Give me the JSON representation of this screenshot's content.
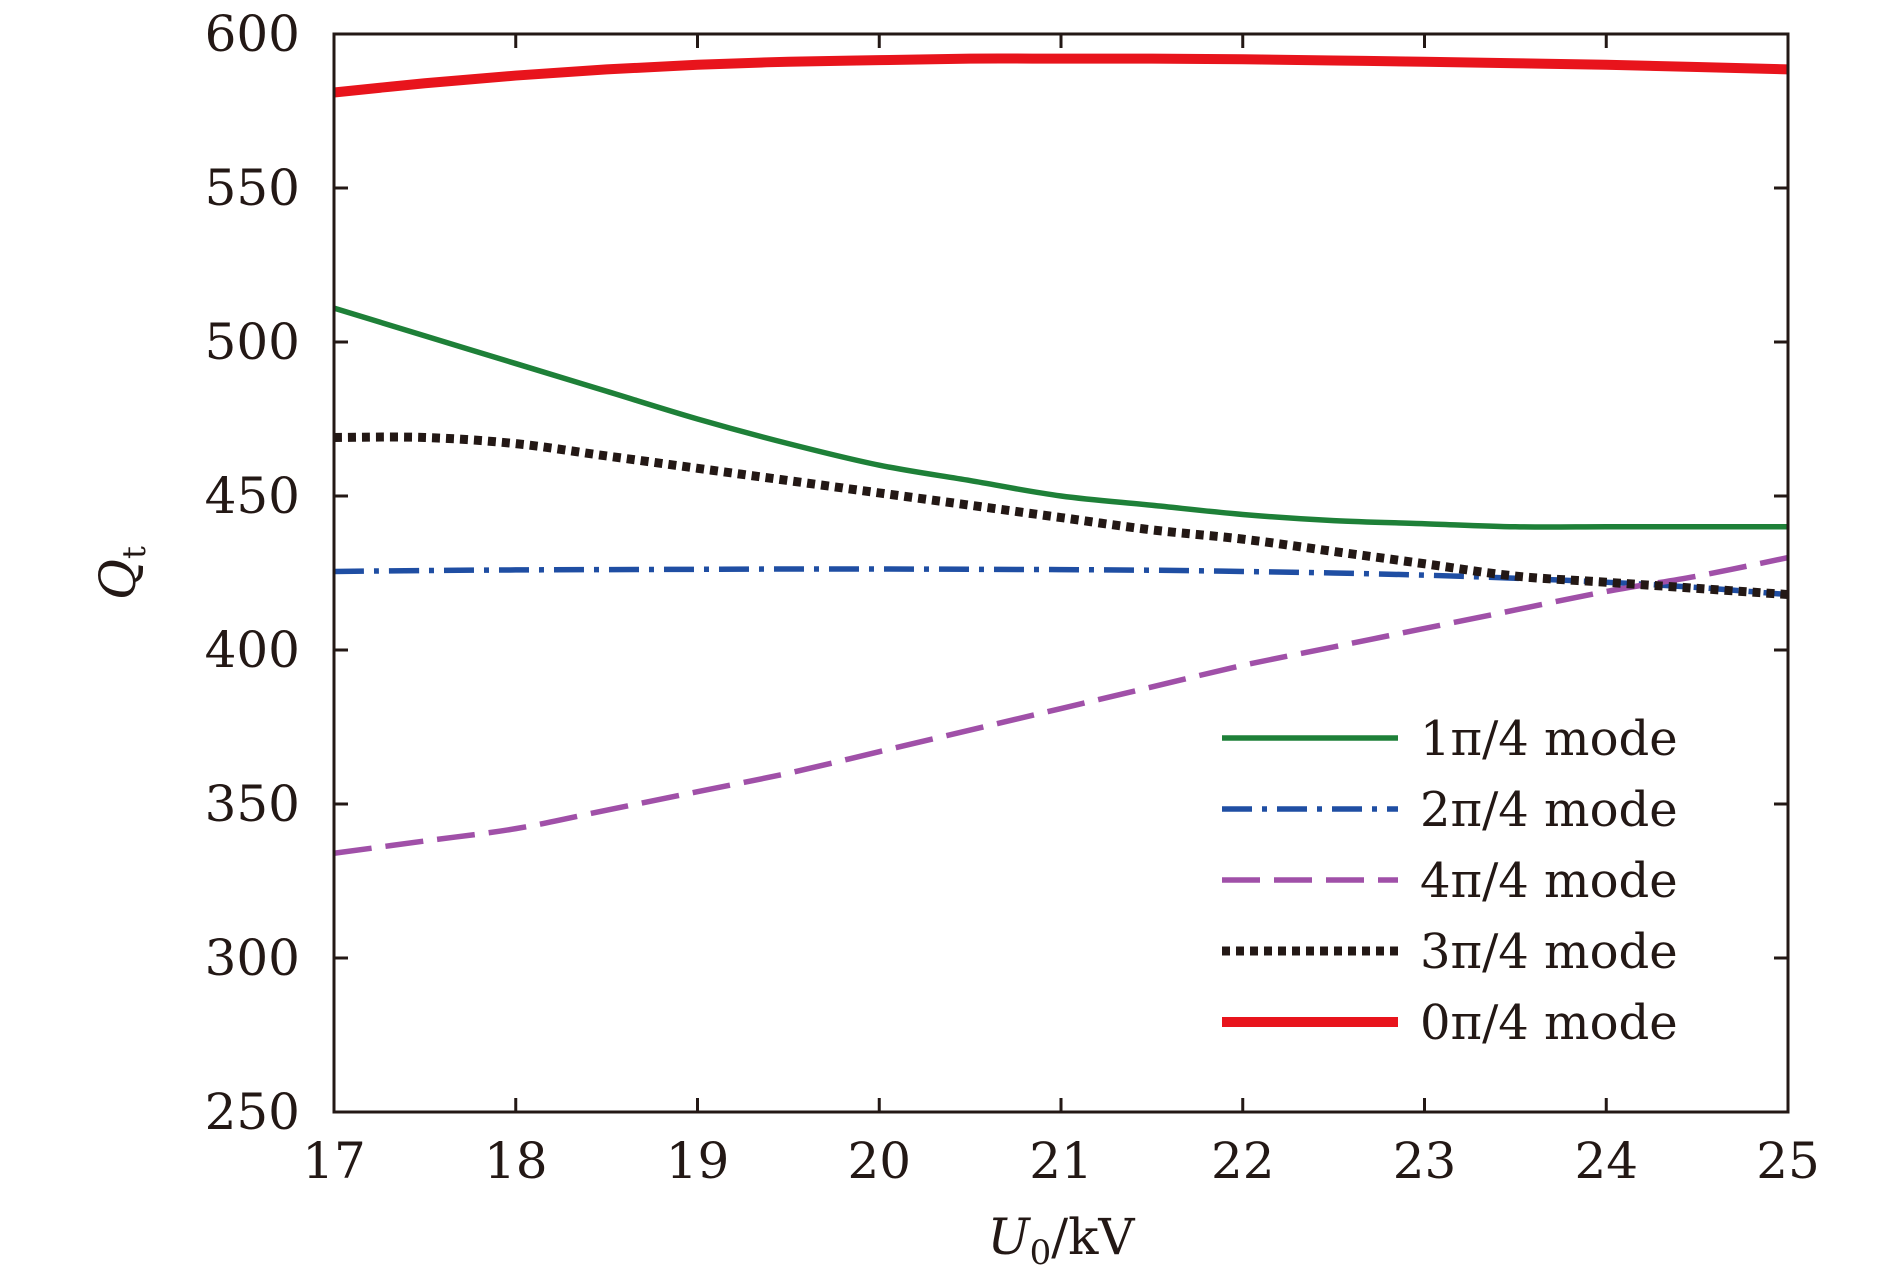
{
  "chart_data": {
    "type": "line",
    "title": "",
    "xlabel": "U0/kV",
    "xlabel_parts": {
      "var": "U",
      "sub": "0",
      "unit": "/kV"
    },
    "ylabel": "Qt",
    "ylabel_parts": {
      "var": "Q",
      "sub": "t"
    },
    "xlim": [
      17,
      25
    ],
    "ylim": [
      250,
      600
    ],
    "xticks": [
      17,
      18,
      19,
      20,
      21,
      22,
      23,
      24,
      25
    ],
    "yticks": [
      250,
      300,
      350,
      400,
      450,
      500,
      550,
      600
    ],
    "grid": false,
    "legend_position": "lower-right",
    "x": [
      17,
      17.5,
      18,
      18.5,
      19,
      19.5,
      20,
      20.5,
      21,
      21.5,
      22,
      22.5,
      23,
      23.5,
      24,
      24.5,
      25
    ],
    "series": [
      {
        "name": "1π/4 mode",
        "color": "#1e8038",
        "style": "solid",
        "values": [
          511,
          502,
          493,
          484,
          475,
          467,
          460,
          455,
          450,
          447,
          444,
          442,
          441,
          440,
          440,
          440,
          440
        ]
      },
      {
        "name": "2π/4 mode",
        "color": "#1f4ea3",
        "style": "dashdot",
        "values": [
          425.5,
          425.8,
          426,
          426.1,
          426.2,
          426.3,
          426.3,
          426.2,
          426.1,
          425.9,
          425.5,
          425,
          424.3,
          423.3,
          422,
          420.3,
          418
        ]
      },
      {
        "name": "4π/4 mode",
        "color": "#a050a8",
        "style": "dashed",
        "values": [
          334,
          338,
          342,
          348,
          354,
          360,
          367,
          374,
          381,
          388,
          395,
          401,
          407,
          413,
          419,
          424,
          430
        ]
      },
      {
        "name": "3π/4 mode",
        "color": "#231815",
        "style": "dotted",
        "values": [
          469,
          469,
          467,
          463,
          459,
          455,
          451,
          447,
          443,
          439,
          436,
          432,
          428,
          424,
          422,
          420,
          418
        ]
      },
      {
        "name": "0π/4 mode",
        "color": "#e8141c",
        "style": "solid-thick",
        "values": [
          581,
          584,
          586.5,
          588.5,
          590,
          591,
          591.5,
          592,
          592,
          592,
          591.8,
          591.4,
          591,
          590.5,
          590,
          589.3,
          588.5
        ]
      }
    ]
  }
}
